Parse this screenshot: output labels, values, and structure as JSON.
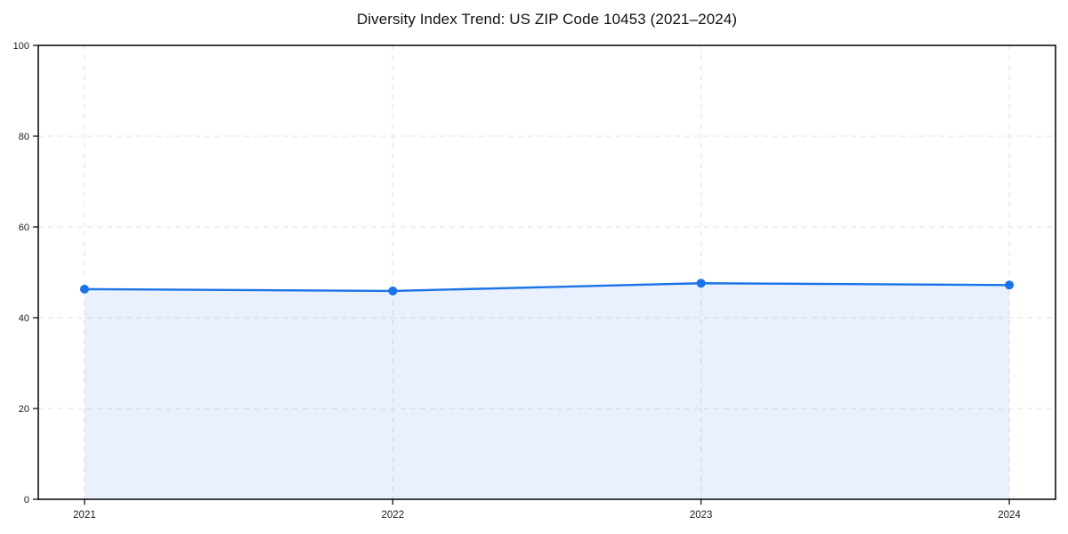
{
  "page": {
    "background": "#ffffff"
  },
  "chart_data": {
    "type": "area",
    "title": "Diversity Index Trend: US ZIP Code 10453 (2021–2024)",
    "x": [
      2021,
      2022,
      2023,
      2024
    ],
    "x_tick_labels": [
      "2021",
      "2022",
      "2023",
      "2024"
    ],
    "values": [
      46.3,
      45.9,
      47.6,
      47.2
    ],
    "xlabel": "",
    "ylabel": "",
    "xlim": [
      2020.85,
      2024.15
    ],
    "ylim": [
      0,
      100
    ],
    "yticks": [
      0,
      20,
      40,
      60,
      80,
      100
    ],
    "grid": {
      "visible": true,
      "style": "dashed",
      "color": "#e2e2e2"
    },
    "legend": {
      "visible": false
    },
    "fill_to_baseline": 0,
    "colors": {
      "line": "#1a73e8",
      "marker": "#1a73e8",
      "fill": "#1a73e8",
      "fill_opacity": 0.1,
      "spine": "#000000",
      "tick_label": "#1c1c1c",
      "title": "#111111"
    }
  }
}
